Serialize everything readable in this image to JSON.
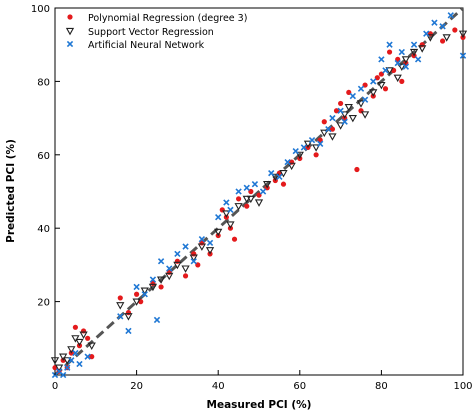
{
  "chart_data": {
    "type": "scatter",
    "xlabel": "Measured PCI (%)",
    "ylabel": "Predicted PCI (%)",
    "xlim": [
      0,
      100
    ],
    "ylim": [
      0,
      100
    ],
    "xticks": [
      0,
      20,
      40,
      60,
      80,
      100
    ],
    "yticks": [
      20,
      40,
      60,
      80,
      100
    ],
    "grid": false,
    "legend_position": "top-left",
    "reference_line": {
      "type": "y=x",
      "style": "dashed",
      "color": "#555555"
    },
    "series": [
      {
        "name": "Polynomial Regression (degree 3)",
        "marker": "circle",
        "color": "#e41a1c",
        "points": [
          [
            0,
            2
          ],
          [
            1,
            1
          ],
          [
            2,
            4
          ],
          [
            3,
            2
          ],
          [
            4,
            6
          ],
          [
            5,
            13
          ],
          [
            6,
            8
          ],
          [
            7,
            12
          ],
          [
            8,
            10
          ],
          [
            9,
            5
          ],
          [
            16,
            21
          ],
          [
            18,
            17
          ],
          [
            20,
            22
          ],
          [
            21,
            20
          ],
          [
            24,
            25
          ],
          [
            26,
            24
          ],
          [
            28,
            28
          ],
          [
            30,
            31
          ],
          [
            32,
            27
          ],
          [
            34,
            33
          ],
          [
            35,
            30
          ],
          [
            36,
            36
          ],
          [
            38,
            33
          ],
          [
            40,
            38
          ],
          [
            41,
            45
          ],
          [
            42,
            43
          ],
          [
            43,
            40
          ],
          [
            44,
            37
          ],
          [
            45,
            48
          ],
          [
            47,
            46
          ],
          [
            48,
            50
          ],
          [
            50,
            49
          ],
          [
            52,
            51
          ],
          [
            54,
            53
          ],
          [
            55,
            55
          ],
          [
            56,
            52
          ],
          [
            58,
            58
          ],
          [
            60,
            59
          ],
          [
            62,
            62
          ],
          [
            64,
            60
          ],
          [
            65,
            64
          ],
          [
            66,
            69
          ],
          [
            68,
            67
          ],
          [
            69,
            72
          ],
          [
            70,
            74
          ],
          [
            71,
            70
          ],
          [
            72,
            77
          ],
          [
            74,
            56
          ],
          [
            75,
            72
          ],
          [
            76,
            79
          ],
          [
            78,
            76
          ],
          [
            79,
            81
          ],
          [
            80,
            82
          ],
          [
            81,
            78
          ],
          [
            82,
            88
          ],
          [
            83,
            83
          ],
          [
            84,
            86
          ],
          [
            85,
            80
          ],
          [
            86,
            85
          ],
          [
            88,
            87
          ],
          [
            90,
            90
          ],
          [
            92,
            93
          ],
          [
            95,
            91
          ],
          [
            98,
            94
          ],
          [
            100,
            92
          ]
        ]
      },
      {
        "name": "Support Vector Regression",
        "marker": "triangle-down",
        "color": "#222222",
        "points": [
          [
            0,
            4
          ],
          [
            1,
            2
          ],
          [
            2,
            5
          ],
          [
            3,
            4
          ],
          [
            4,
            7
          ],
          [
            5,
            10
          ],
          [
            6,
            9
          ],
          [
            7,
            11
          ],
          [
            9,
            8
          ],
          [
            16,
            19
          ],
          [
            18,
            16
          ],
          [
            20,
            20
          ],
          [
            22,
            23
          ],
          [
            24,
            24
          ],
          [
            26,
            26
          ],
          [
            28,
            27
          ],
          [
            30,
            30
          ],
          [
            32,
            29
          ],
          [
            34,
            32
          ],
          [
            36,
            35
          ],
          [
            38,
            34
          ],
          [
            40,
            39
          ],
          [
            42,
            44
          ],
          [
            43,
            41
          ],
          [
            45,
            46
          ],
          [
            47,
            48
          ],
          [
            48,
            48
          ],
          [
            50,
            47
          ],
          [
            52,
            52
          ],
          [
            54,
            54
          ],
          [
            56,
            55
          ],
          [
            58,
            57
          ],
          [
            60,
            60
          ],
          [
            62,
            63
          ],
          [
            64,
            62
          ],
          [
            66,
            66
          ],
          [
            68,
            65
          ],
          [
            70,
            68
          ],
          [
            71,
            71
          ],
          [
            72,
            73
          ],
          [
            73,
            70
          ],
          [
            75,
            74
          ],
          [
            76,
            71
          ],
          [
            78,
            77
          ],
          [
            80,
            79
          ],
          [
            82,
            83
          ],
          [
            84,
            81
          ],
          [
            85,
            84
          ],
          [
            86,
            86
          ],
          [
            88,
            88
          ],
          [
            90,
            89
          ],
          [
            92,
            92
          ],
          [
            96,
            92
          ],
          [
            100,
            93
          ]
        ]
      },
      {
        "name": "Artificial Neural Network",
        "marker": "x",
        "color": "#1f77d4",
        "points": [
          [
            0,
            0
          ],
          [
            1,
            1
          ],
          [
            2,
            0
          ],
          [
            3,
            2
          ],
          [
            4,
            4
          ],
          [
            5,
            6
          ],
          [
            6,
            3
          ],
          [
            8,
            5
          ],
          [
            16,
            16
          ],
          [
            18,
            12
          ],
          [
            20,
            24
          ],
          [
            22,
            22
          ],
          [
            24,
            26
          ],
          [
            25,
            15
          ],
          [
            26,
            31
          ],
          [
            28,
            29
          ],
          [
            30,
            33
          ],
          [
            32,
            35
          ],
          [
            34,
            31
          ],
          [
            36,
            37
          ],
          [
            38,
            36
          ],
          [
            40,
            43
          ],
          [
            42,
            47
          ],
          [
            43,
            45
          ],
          [
            45,
            50
          ],
          [
            47,
            51
          ],
          [
            49,
            52
          ],
          [
            51,
            50
          ],
          [
            53,
            55
          ],
          [
            55,
            54
          ],
          [
            57,
            58
          ],
          [
            59,
            61
          ],
          [
            61,
            62
          ],
          [
            63,
            64
          ],
          [
            65,
            63
          ],
          [
            67,
            67
          ],
          [
            68,
            70
          ],
          [
            70,
            72
          ],
          [
            71,
            69
          ],
          [
            73,
            76
          ],
          [
            75,
            78
          ],
          [
            76,
            75
          ],
          [
            78,
            80
          ],
          [
            80,
            86
          ],
          [
            81,
            83
          ],
          [
            82,
            90
          ],
          [
            84,
            85
          ],
          [
            85,
            88
          ],
          [
            86,
            84
          ],
          [
            88,
            90
          ],
          [
            89,
            86
          ],
          [
            91,
            93
          ],
          [
            93,
            96
          ],
          [
            95,
            95
          ],
          [
            97,
            98
          ],
          [
            100,
            87
          ]
        ]
      }
    ]
  }
}
